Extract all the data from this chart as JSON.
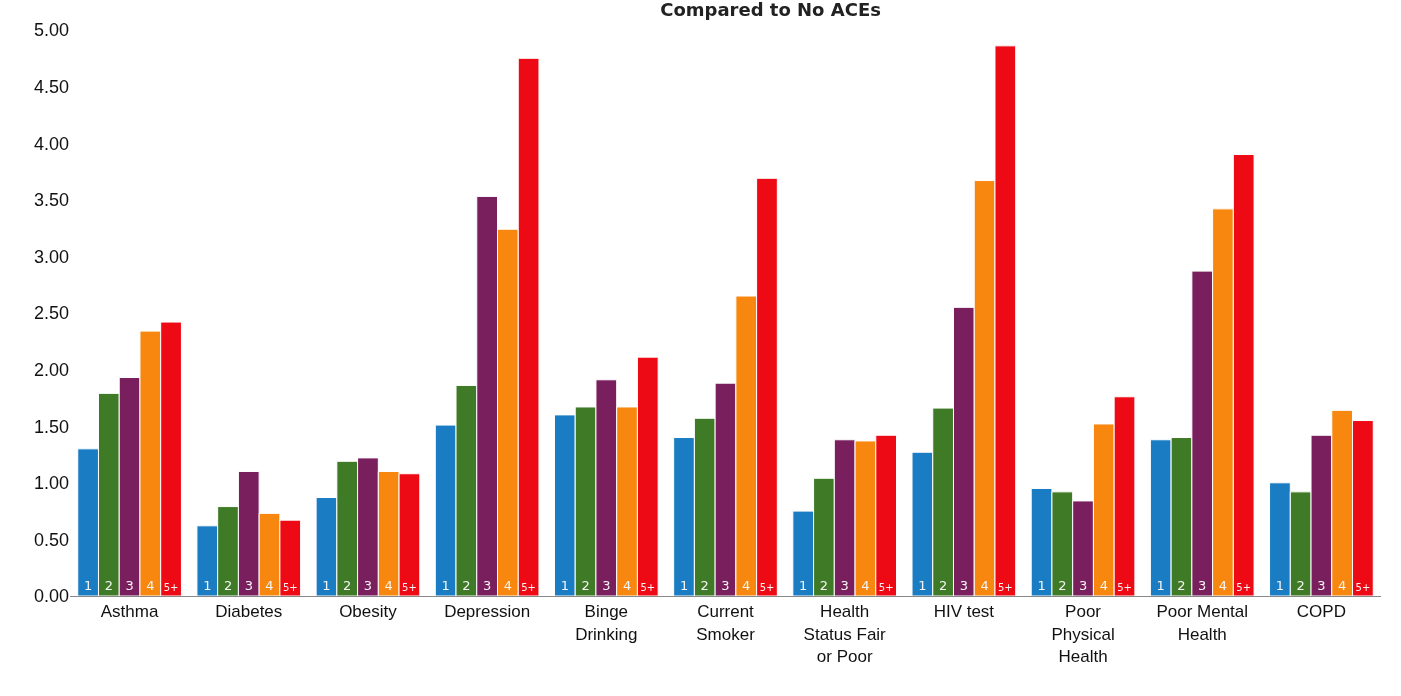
{
  "chart_data": {
    "type": "bar",
    "title": "Compared to No ACEs",
    "categories": [
      "Asthma",
      "Diabetes",
      "Obesity",
      "Depression",
      "Binge Drinking",
      "Current Smoker",
      "Health Status Fair or Poor",
      "HIV test",
      "Poor Physical Health",
      "Poor Mental Health",
      "COPD"
    ],
    "series": [
      {
        "name": "1",
        "color": "#1a7dc4",
        "values": [
          1.3,
          0.62,
          0.87,
          1.51,
          1.6,
          1.4,
          0.75,
          1.27,
          0.95,
          1.38,
          1.0
        ]
      },
      {
        "name": "2",
        "color": "#3f7a27",
        "values": [
          1.79,
          0.79,
          1.19,
          1.86,
          1.67,
          1.57,
          1.04,
          1.66,
          0.92,
          1.4,
          0.92
        ]
      },
      {
        "name": "3",
        "color": "#7a1f5e",
        "values": [
          1.93,
          1.1,
          1.22,
          3.53,
          1.91,
          1.88,
          1.38,
          2.55,
          0.84,
          2.87,
          1.42
        ]
      },
      {
        "name": "4",
        "color": "#f7870f",
        "values": [
          2.34,
          0.73,
          1.1,
          3.24,
          1.67,
          2.65,
          1.37,
          3.67,
          1.52,
          3.42,
          1.64
        ]
      },
      {
        "name": "5+",
        "color": "#ee0a14",
        "values": [
          2.42,
          0.67,
          1.08,
          4.75,
          2.11,
          3.69,
          1.42,
          4.86,
          1.76,
          3.9,
          1.55
        ]
      }
    ],
    "ylim": [
      0,
      5
    ],
    "yticks": [
      {
        "value": 0,
        "label": "0.00"
      },
      {
        "value": 0.5,
        "label": "0.50"
      },
      {
        "value": 1,
        "label": "1.00"
      },
      {
        "value": 1.5,
        "label": "1.50"
      },
      {
        "value": 2,
        "label": "2.00"
      },
      {
        "value": 2.5,
        "label": "2.50"
      },
      {
        "value": 3,
        "label": "3.00"
      },
      {
        "value": 3.5,
        "label": "3.50"
      },
      {
        "value": 4,
        "label": "4.00"
      },
      {
        "value": 4.5,
        "label": "4.50"
      },
      {
        "value": 5,
        "label": "5.00"
      }
    ],
    "grid": false,
    "legend": false
  }
}
